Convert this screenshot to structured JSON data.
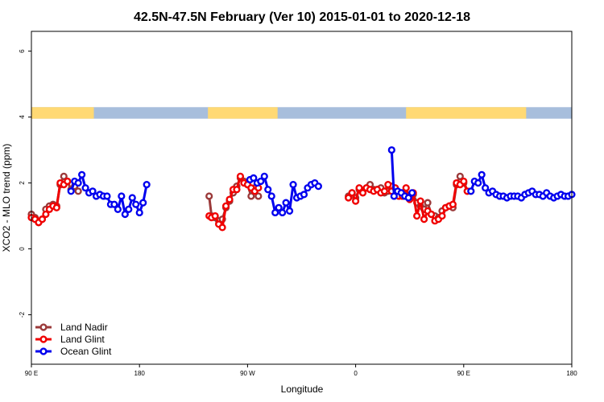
{
  "chart_data": {
    "type": "line",
    "title": "42.5N-47.5N February (Ver 10)   2015-01-01 to 2020-12-18",
    "xlabel": "Longitude",
    "ylabel": "XCO2 - MLO trend (ppm)",
    "xlim": [
      0,
      450
    ],
    "ylim": [
      -3.5,
      6.6
    ],
    "x_ticks": [
      {
        "value": 0,
        "label": "90 E"
      },
      {
        "value": 90,
        "label": "180"
      },
      {
        "value": 180,
        "label": "90 W"
      },
      {
        "value": 270,
        "label": "0"
      },
      {
        "value": 360,
        "label": "90 E"
      },
      {
        "value": 450,
        "label": "180"
      }
    ],
    "y_ticks": [
      {
        "value": -2,
        "label": "-2"
      },
      {
        "value": 0,
        "label": "0"
      },
      {
        "value": 2,
        "label": "2"
      },
      {
        "value": 4,
        "label": "4"
      },
      {
        "value": 6,
        "label": "6"
      }
    ],
    "land_ocean_strip": {
      "y_range": [
        3.95,
        4.3
      ],
      "land_color": "#ffd974",
      "ocean_color": "#a7bedc",
      "land_segments": [
        [
          0,
          52
        ],
        [
          147,
          205
        ],
        [
          312,
          412
        ]
      ]
    },
    "legend": {
      "position": "bottom-left",
      "entries": [
        "Land Nadir",
        "Land Glint",
        "Ocean Glint"
      ]
    },
    "series": [
      {
        "name": "Land Nadir",
        "color": "#9b3a3a",
        "points": [
          [
            0,
            1.05
          ],
          [
            3,
            0.95
          ],
          [
            6,
            0.8
          ],
          [
            9,
            0.9
          ],
          [
            12,
            1.2
          ],
          [
            15,
            1.3
          ],
          [
            18,
            1.35
          ],
          [
            21,
            1.3
          ],
          [
            24,
            1.95
          ],
          [
            27,
            2.2
          ],
          [
            30,
            2.05
          ],
          [
            33,
            1.8
          ],
          [
            36,
            1.9
          ],
          [
            39,
            1.75
          ],
          [
            148,
            1.6
          ],
          [
            150,
            1.0
          ],
          [
            153,
            0.95
          ],
          [
            156,
            0.85
          ],
          [
            159,
            0.9
          ],
          [
            162,
            1.25
          ],
          [
            165,
            1.45
          ],
          [
            168,
            1.7
          ],
          [
            171,
            1.9
          ],
          [
            174,
            2.15
          ],
          [
            177,
            2.05
          ],
          [
            180,
            1.95
          ],
          [
            183,
            1.6
          ],
          [
            186,
            1.85
          ],
          [
            189,
            1.6
          ],
          [
            264,
            1.6
          ],
          [
            267,
            1.7
          ],
          [
            270,
            1.55
          ],
          [
            273,
            1.8
          ],
          [
            276,
            1.75
          ],
          [
            279,
            1.85
          ],
          [
            282,
            1.95
          ],
          [
            285,
            1.8
          ],
          [
            288,
            1.8
          ],
          [
            291,
            1.85
          ],
          [
            294,
            1.7
          ],
          [
            297,
            1.75
          ],
          [
            300,
            1.9
          ],
          [
            303,
            1.8
          ],
          [
            306,
            1.7
          ],
          [
            309,
            1.7
          ],
          [
            312,
            1.65
          ],
          [
            315,
            1.6
          ],
          [
            318,
            1.65
          ],
          [
            321,
            1.4
          ],
          [
            324,
            1.3
          ],
          [
            327,
            1.2
          ],
          [
            330,
            1.4
          ],
          [
            333,
            1.05
          ],
          [
            336,
            1.0
          ],
          [
            339,
            0.95
          ],
          [
            342,
            1.15
          ],
          [
            345,
            1.25
          ],
          [
            348,
            1.3
          ],
          [
            351,
            1.25
          ],
          [
            354,
            1.95
          ],
          [
            357,
            2.2
          ],
          [
            360,
            2.0
          ],
          [
            363,
            1.75
          ],
          [
            366,
            1.75
          ]
        ]
      },
      {
        "name": "Land Glint",
        "color": "#f00000",
        "points": [
          [
            0,
            0.95
          ],
          [
            3,
            0.9
          ],
          [
            6,
            0.8
          ],
          [
            9,
            0.9
          ],
          [
            12,
            1.05
          ],
          [
            15,
            1.2
          ],
          [
            18,
            1.3
          ],
          [
            21,
            1.25
          ],
          [
            24,
            2.0
          ],
          [
            27,
            1.95
          ],
          [
            30,
            2.05
          ],
          [
            148,
            1.0
          ],
          [
            150,
            0.95
          ],
          [
            153,
            1.0
          ],
          [
            156,
            0.75
          ],
          [
            159,
            0.65
          ],
          [
            162,
            1.3
          ],
          [
            165,
            1.5
          ],
          [
            168,
            1.8
          ],
          [
            171,
            1.8
          ],
          [
            174,
            2.2
          ],
          [
            177,
            2.0
          ],
          [
            180,
            1.95
          ],
          [
            183,
            1.85
          ],
          [
            186,
            1.75
          ],
          [
            189,
            1.85
          ],
          [
            264,
            1.55
          ],
          [
            267,
            1.7
          ],
          [
            270,
            1.45
          ],
          [
            273,
            1.85
          ],
          [
            276,
            1.7
          ],
          [
            279,
            1.85
          ],
          [
            282,
            1.8
          ],
          [
            285,
            1.75
          ],
          [
            288,
            1.8
          ],
          [
            291,
            1.7
          ],
          [
            294,
            1.75
          ],
          [
            297,
            1.95
          ],
          [
            300,
            1.75
          ],
          [
            303,
            1.85
          ],
          [
            306,
            1.6
          ],
          [
            309,
            1.6
          ],
          [
            312,
            1.85
          ],
          [
            315,
            1.5
          ],
          [
            318,
            1.7
          ],
          [
            321,
            1.0
          ],
          [
            324,
            1.45
          ],
          [
            327,
            0.9
          ],
          [
            330,
            1.15
          ],
          [
            333,
            1.05
          ],
          [
            336,
            0.85
          ],
          [
            339,
            0.9
          ],
          [
            342,
            1.0
          ],
          [
            345,
            1.25
          ],
          [
            348,
            1.3
          ],
          [
            351,
            1.35
          ],
          [
            354,
            2.0
          ],
          [
            357,
            1.95
          ],
          [
            360,
            2.05
          ],
          [
            363,
            1.75
          ]
        ]
      },
      {
        "name": "Ocean Glint",
        "color": "#0000ee",
        "points": [
          [
            33,
            1.75
          ],
          [
            36,
            2.05
          ],
          [
            39,
            2.0
          ],
          [
            42,
            2.25
          ],
          [
            45,
            1.85
          ],
          [
            48,
            1.7
          ],
          [
            51,
            1.75
          ],
          [
            54,
            1.6
          ],
          [
            57,
            1.65
          ],
          [
            60,
            1.6
          ],
          [
            63,
            1.6
          ],
          [
            66,
            1.35
          ],
          [
            69,
            1.35
          ],
          [
            72,
            1.2
          ],
          [
            75,
            1.6
          ],
          [
            78,
            1.05
          ],
          [
            81,
            1.2
          ],
          [
            84,
            1.55
          ],
          [
            87,
            1.35
          ],
          [
            90,
            1.1
          ],
          [
            93,
            1.4
          ],
          [
            96,
            1.95
          ],
          [
            182,
            2.1
          ],
          [
            185,
            2.15
          ],
          [
            188,
            2.0
          ],
          [
            191,
            2.05
          ],
          [
            194,
            2.2
          ],
          [
            197,
            1.8
          ],
          [
            200,
            1.6
          ],
          [
            203,
            1.1
          ],
          [
            206,
            1.25
          ],
          [
            209,
            1.1
          ],
          [
            212,
            1.4
          ],
          [
            215,
            1.15
          ],
          [
            218,
            1.95
          ],
          [
            221,
            1.55
          ],
          [
            224,
            1.6
          ],
          [
            227,
            1.65
          ],
          [
            230,
            1.85
          ],
          [
            233,
            1.95
          ],
          [
            236,
            2.0
          ],
          [
            239,
            1.9
          ],
          [
            300,
            3.0
          ],
          [
            302,
            1.6
          ],
          [
            305,
            1.75
          ],
          [
            308,
            1.7
          ],
          [
            311,
            1.6
          ],
          [
            314,
            1.55
          ],
          [
            317,
            1.7
          ],
          [
            366,
            1.75
          ],
          [
            369,
            2.05
          ],
          [
            372,
            2.0
          ],
          [
            375,
            2.25
          ],
          [
            378,
            1.85
          ],
          [
            381,
            1.7
          ],
          [
            384,
            1.75
          ],
          [
            387,
            1.65
          ],
          [
            390,
            1.6
          ],
          [
            393,
            1.6
          ],
          [
            396,
            1.55
          ],
          [
            399,
            1.6
          ],
          [
            402,
            1.6
          ],
          [
            405,
            1.6
          ],
          [
            408,
            1.55
          ],
          [
            411,
            1.65
          ],
          [
            414,
            1.7
          ],
          [
            417,
            1.75
          ],
          [
            420,
            1.65
          ],
          [
            423,
            1.65
          ],
          [
            426,
            1.6
          ],
          [
            429,
            1.7
          ],
          [
            432,
            1.6
          ],
          [
            435,
            1.55
          ],
          [
            438,
            1.6
          ],
          [
            441,
            1.65
          ],
          [
            444,
            1.6
          ],
          [
            447,
            1.6
          ],
          [
            450,
            1.65
          ]
        ]
      }
    ]
  }
}
